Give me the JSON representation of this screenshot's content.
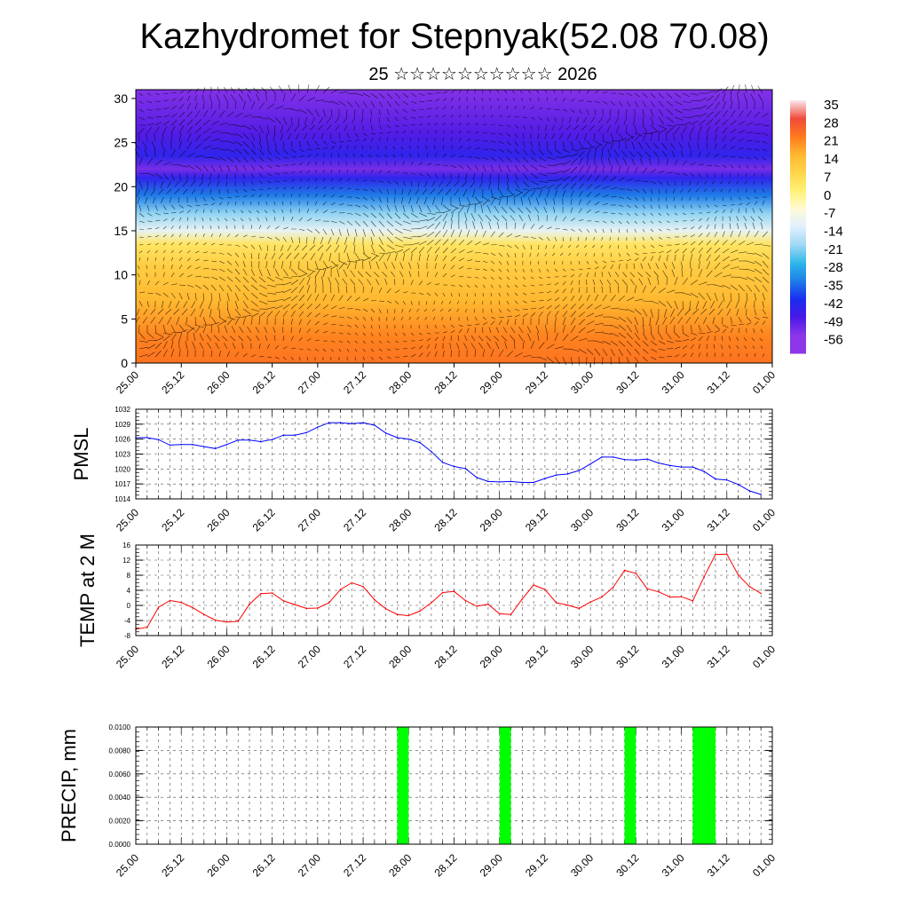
{
  "title": "Kazhydromet for Stepnyak(52.08 70.08)",
  "subtitle": "25 ☆☆☆☆☆☆☆☆☆☆ 2026",
  "time_ticks": [
    "25.00",
    "25.12",
    "26.00",
    "26.12",
    "27.00",
    "27.12",
    "28.00",
    "28.12",
    "29.00",
    "29.12",
    "30.00",
    "30.12",
    "31.00",
    "31.12",
    "01.00"
  ],
  "chart_data": [
    {
      "type": "heatmap",
      "title": "",
      "ylim": [
        0,
        31
      ],
      "yticks": [
        0,
        5,
        10,
        15,
        20,
        25,
        30
      ],
      "x_range": [
        0,
        7
      ],
      "overlay": "wind vectors",
      "colorbar": {
        "labels": [
          "35",
          "28",
          "21",
          "14",
          "7",
          "0",
          "-7",
          "-14",
          "-21",
          "-28",
          "-35",
          "-42",
          "-49",
          "-56"
        ],
        "colors": [
          "#fbe7ee",
          "#f04a3b",
          "#ff7a1c",
          "#ffb830",
          "#ffd54a",
          "#fff176",
          "#fffbd6",
          "#dff0ff",
          "#9fd8f5",
          "#2db7ea",
          "#1e7ce8",
          "#1a2df0",
          "#4a18e6",
          "#8c36e8"
        ]
      },
      "temperature_layers": [
        {
          "level": 0,
          "value": 22
        },
        {
          "level": 3,
          "value": 20
        },
        {
          "level": 7,
          "value": 14
        },
        {
          "level": 11,
          "value": 9
        },
        {
          "level": 13.5,
          "value": 3
        },
        {
          "level": 15,
          "value": -12
        },
        {
          "level": 17,
          "value": -22
        },
        {
          "level": 19,
          "value": -35
        },
        {
          "level": 21,
          "value": -45
        },
        {
          "level": 22,
          "value": -54
        },
        {
          "level": 23.5,
          "value": -45
        },
        {
          "level": 26,
          "value": -50
        },
        {
          "level": 31,
          "value": -55
        }
      ]
    },
    {
      "type": "line",
      "ylabel": "PMSL",
      "ylim": [
        1014,
        1032
      ],
      "yticks": [
        1014,
        1017,
        1020,
        1023,
        1026,
        1029,
        1032
      ],
      "color": "#0000ff",
      "x": [
        0,
        0.125,
        0.25,
        0.375,
        0.5,
        0.625,
        0.75,
        0.875,
        1,
        1.125,
        1.25,
        1.375,
        1.5,
        1.625,
        1.75,
        1.875,
        2,
        2.125,
        2.25,
        2.375,
        2.5,
        2.625,
        2.75,
        2.875,
        3,
        3.125,
        3.25,
        3.375,
        3.5,
        3.625,
        3.75,
        3.875,
        4,
        4.125,
        4.25,
        4.375,
        4.5,
        4.625,
        4.75,
        4.875,
        5,
        5.125,
        5.25,
        5.375,
        5.5,
        5.625,
        5.75,
        5.875,
        6,
        6.125,
        6.25,
        6.375,
        6.5,
        6.625,
        6.75,
        6.875
      ],
      "values": [
        1026.3,
        1026.3,
        1025.9,
        1024.8,
        1024.9,
        1024.9,
        1024.5,
        1024.1,
        1024.9,
        1025.8,
        1025.8,
        1025.5,
        1025.9,
        1026.8,
        1026.8,
        1027.3,
        1028.4,
        1029.3,
        1029.3,
        1029.1,
        1029.3,
        1028.8,
        1027.2,
        1026.3,
        1026.0,
        1025.3,
        1023.5,
        1021.3,
        1020.5,
        1020.1,
        1018.3,
        1017.5,
        1017.4,
        1017.5,
        1017.3,
        1017.3,
        1018.1,
        1018.8,
        1019.0,
        1019.7,
        1021.0,
        1022.4,
        1022.4,
        1021.9,
        1021.8,
        1022.0,
        1021.2,
        1020.7,
        1020.4,
        1020.4,
        1019.5,
        1018.0,
        1017.8,
        1016.9,
        1015.6,
        1014.9
      ]
    },
    {
      "type": "line",
      "ylabel": "TEMP at 2 M",
      "ylim": [
        -8,
        16
      ],
      "yticks": [
        -8,
        -4,
        0,
        4,
        8,
        12,
        16
      ],
      "color": "#ff0000",
      "x": [
        0,
        0.125,
        0.25,
        0.375,
        0.5,
        0.625,
        0.75,
        0.875,
        1,
        1.125,
        1.25,
        1.375,
        1.5,
        1.625,
        1.75,
        1.875,
        2,
        2.125,
        2.25,
        2.375,
        2.5,
        2.625,
        2.75,
        2.875,
        3,
        3.125,
        3.25,
        3.375,
        3.5,
        3.625,
        3.75,
        3.875,
        4,
        4.125,
        4.25,
        4.375,
        4.5,
        4.625,
        4.75,
        4.875,
        5,
        5.125,
        5.25,
        5.375,
        5.5,
        5.625,
        5.75,
        5.875,
        6,
        6.125,
        6.25,
        6.375,
        6.5,
        6.625,
        6.75,
        6.875
      ],
      "values": [
        -6.3,
        -5.8,
        -0.5,
        1.3,
        0.8,
        -0.6,
        -2.4,
        -3.9,
        -4.4,
        -4.2,
        0.3,
        3.1,
        3.3,
        1.2,
        0.2,
        -0.8,
        -0.7,
        0.7,
        4.2,
        6.0,
        5.0,
        1.5,
        -0.9,
        -2.4,
        -2.7,
        -1.5,
        0.7,
        3.4,
        3.7,
        1.3,
        -0.2,
        0.3,
        -2.2,
        -2.4,
        1.7,
        5.4,
        4.2,
        0.7,
        0.1,
        -0.8,
        0.9,
        2.2,
        4.8,
        9.3,
        8.5,
        4.4,
        3.6,
        2.2,
        2.3,
        1.2,
        7.6,
        13.5,
        13.6,
        8.1,
        5.0,
        3.2
      ]
    },
    {
      "type": "bar",
      "ylabel": "PRECIP, mm",
      "ylim": [
        0,
        0.01
      ],
      "yticks": [
        "0.0000",
        "0.0020",
        "0.0040",
        "0.0060",
        "0.0080",
        "0.0100"
      ],
      "color": "#00ff00",
      "bars": [
        {
          "x_start": 2.875,
          "x_end": 3.0,
          "value": 0.01
        },
        {
          "x_start": 4.0,
          "x_end": 4.125,
          "value": 0.01
        },
        {
          "x_start": 5.375,
          "x_end": 5.5,
          "value": 0.01
        },
        {
          "x_start": 6.125,
          "x_end": 6.375,
          "value": 0.01
        }
      ]
    }
  ]
}
